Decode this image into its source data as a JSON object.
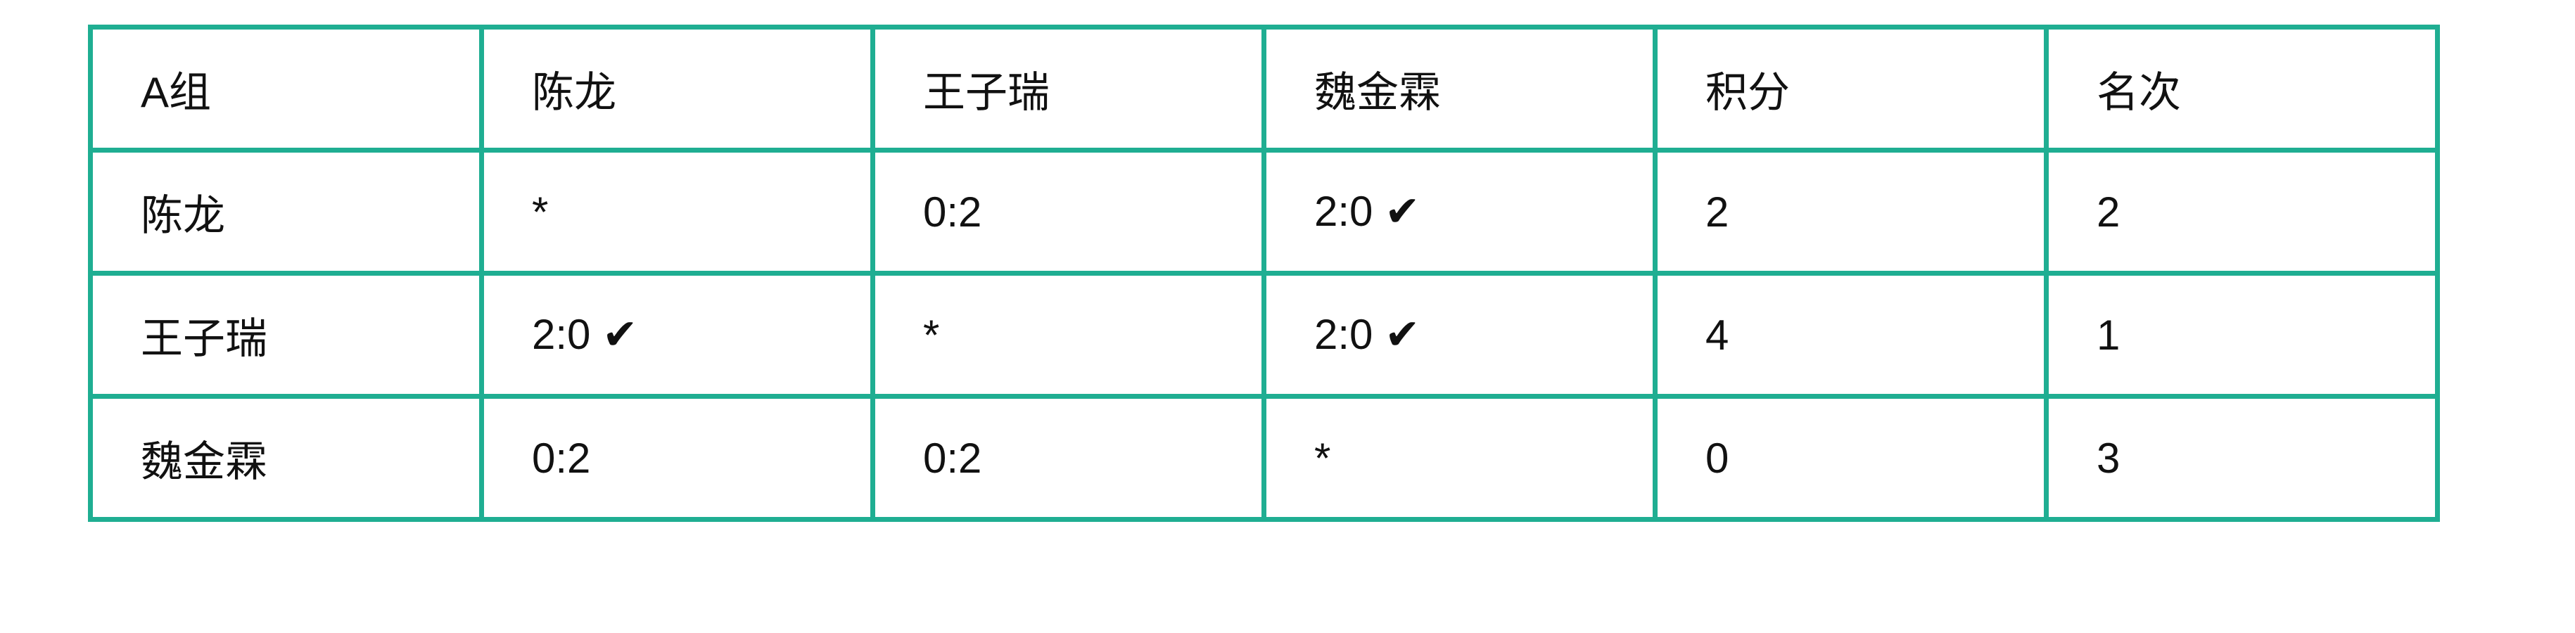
{
  "table": {
    "rows": [
      [
        "A组",
        "陈龙",
        "王子瑞",
        "魏金霖",
        "积分",
        "名次"
      ],
      [
        "陈龙",
        "*",
        "0:2",
        "2:0 ✔",
        "2",
        "2"
      ],
      [
        "王子瑞",
        "2:0 ✔",
        "*",
        "2:0 ✔",
        "4",
        "1"
      ],
      [
        "魏金霖",
        "0:2",
        "0:2",
        "*",
        "0",
        "3"
      ]
    ]
  }
}
